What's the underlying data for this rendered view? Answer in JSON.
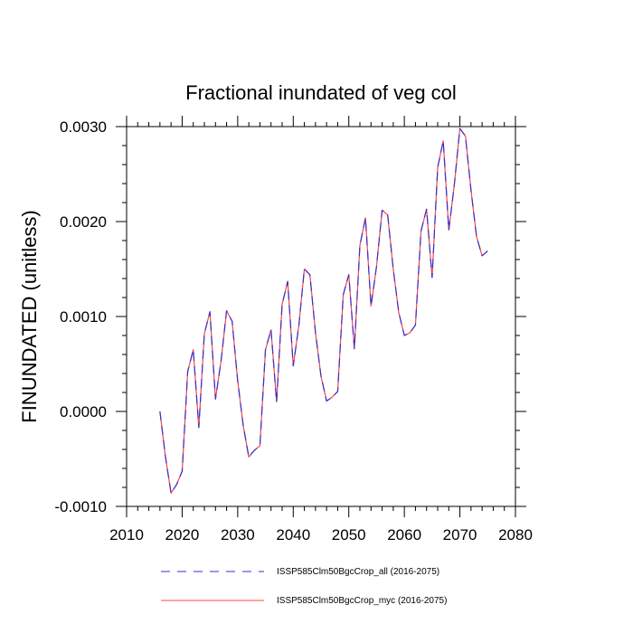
{
  "chart_data": {
    "type": "line",
    "title": "Fractional inundated of veg col",
    "xlabel": "",
    "ylabel": "FINUNDATED  (unitless)",
    "xlim": [
      2010,
      2080
    ],
    "ylim": [
      -0.001,
      0.003
    ],
    "x_ticks": [
      "2010",
      "2020",
      "2030",
      "2040",
      "2050",
      "2060",
      "2070",
      "2080"
    ],
    "y_ticks": [
      "-0.0010",
      "0.0000",
      "0.0010",
      "0.0020",
      "0.0030"
    ],
    "grid": false,
    "legend_position": "bottom",
    "x": [
      2016,
      2017,
      2018,
      2019,
      2020,
      2021,
      2022,
      2023,
      2024,
      2025,
      2026,
      2027,
      2028,
      2029,
      2030,
      2031,
      2032,
      2033,
      2034,
      2035,
      2036,
      2037,
      2038,
      2039,
      2040,
      2041,
      2042,
      2043,
      2044,
      2045,
      2046,
      2047,
      2048,
      2049,
      2050,
      2051,
      2052,
      2053,
      2054,
      2055,
      2056,
      2057,
      2058,
      2059,
      2060,
      2061,
      2062,
      2063,
      2064,
      2065,
      2066,
      2067,
      2068,
      2069,
      2070,
      2071,
      2072,
      2073,
      2074,
      2075
    ],
    "series": [
      {
        "name": "ISSP585Clm50BgcCrop_all (2016-2075)",
        "color": "#3333cc",
        "style": "dashed",
        "values": [
          0.0,
          -0.00048,
          -0.00086,
          -0.00077,
          -0.00063,
          0.00042,
          0.00065,
          -0.00017,
          0.00082,
          0.00105,
          0.00013,
          0.00053,
          0.00106,
          0.00095,
          0.00032,
          -0.00015,
          -0.00048,
          -0.00041,
          -0.00036,
          0.00065,
          0.00086,
          0.0001,
          0.00113,
          0.00137,
          0.00048,
          0.0009,
          0.0015,
          0.00144,
          0.00083,
          0.00037,
          0.00011,
          0.00015,
          0.00021,
          0.00123,
          0.00144,
          0.00066,
          0.00175,
          0.00204,
          0.00111,
          0.00153,
          0.00212,
          0.00207,
          0.0015,
          0.00104,
          0.0008,
          0.00083,
          0.00091,
          0.0019,
          0.00213,
          0.00141,
          0.00257,
          0.00285,
          0.00191,
          0.00239,
          0.00298,
          0.0029,
          0.00233,
          0.00184,
          0.00164,
          0.00169
        ]
      },
      {
        "name": "ISSP585Clm50BgcCrop_myc (2016-2075)",
        "color": "#ff4444",
        "style": "solid",
        "values": [
          0.0,
          -0.00048,
          -0.00086,
          -0.00077,
          -0.00063,
          0.00042,
          0.00065,
          -0.00017,
          0.00082,
          0.00105,
          0.00013,
          0.00053,
          0.00106,
          0.00095,
          0.00032,
          -0.00015,
          -0.00048,
          -0.00041,
          -0.00036,
          0.00065,
          0.00086,
          0.0001,
          0.00113,
          0.00137,
          0.00048,
          0.0009,
          0.0015,
          0.00144,
          0.00083,
          0.00037,
          0.00011,
          0.00015,
          0.00021,
          0.00123,
          0.00144,
          0.00066,
          0.00175,
          0.00204,
          0.00111,
          0.00153,
          0.00212,
          0.00207,
          0.0015,
          0.00104,
          0.0008,
          0.00083,
          0.00091,
          0.0019,
          0.00213,
          0.00141,
          0.00257,
          0.00285,
          0.00191,
          0.00239,
          0.00298,
          0.0029,
          0.00233,
          0.00184,
          0.00164,
          0.00169
        ]
      }
    ]
  }
}
